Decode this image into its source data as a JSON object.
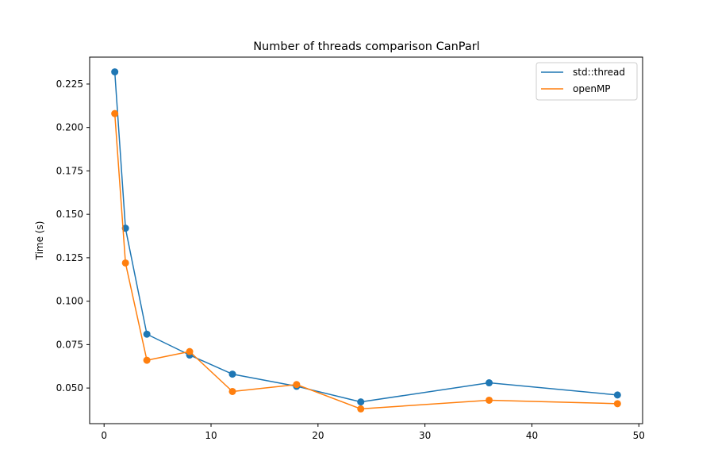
{
  "chart_data": {
    "type": "line",
    "title": "Number of threads comparison CanParl",
    "xlabel": "",
    "ylabel": "Time (s)",
    "xlim": [
      -1.35,
      50.35
    ],
    "ylim": [
      0.0295,
      0.2405
    ],
    "xticks": [
      0,
      10,
      20,
      30,
      40,
      50
    ],
    "xtick_labels": [
      "0",
      "10",
      "20",
      "30",
      "40",
      "50"
    ],
    "yticks": [
      0.05,
      0.075,
      0.1,
      0.125,
      0.15,
      0.175,
      0.2,
      0.225
    ],
    "ytick_labels": [
      "0.050",
      "0.075",
      "0.100",
      "0.125",
      "0.150",
      "0.175",
      "0.200",
      "0.225"
    ],
    "grid": false,
    "legend_position": "top-right",
    "series": [
      {
        "name": "std::thread",
        "color": "#1f77b4",
        "marker": "circle",
        "x": [
          1,
          2,
          4,
          8,
          12,
          18,
          24,
          36,
          48
        ],
        "y": [
          0.232,
          0.142,
          0.081,
          0.069,
          0.058,
          0.051,
          0.042,
          0.053,
          0.046
        ]
      },
      {
        "name": "openMP",
        "color": "#ff7f0e",
        "marker": "circle",
        "x": [
          1,
          2,
          4,
          8,
          12,
          18,
          24,
          36,
          48
        ],
        "y": [
          0.208,
          0.122,
          0.066,
          0.071,
          0.048,
          0.052,
          0.038,
          0.043,
          0.041
        ]
      }
    ]
  }
}
